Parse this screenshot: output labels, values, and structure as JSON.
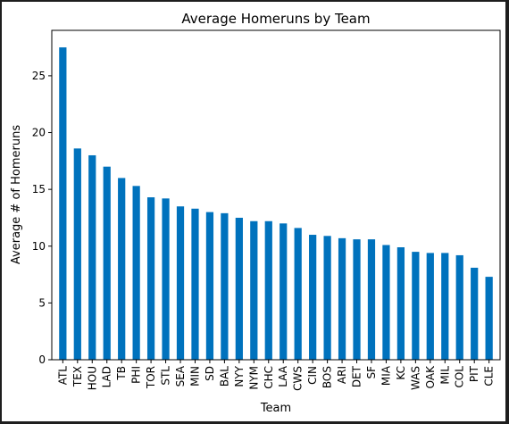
{
  "chart_data": {
    "type": "bar",
    "title": "Average Homeruns by Team",
    "xlabel": "Team",
    "ylabel": "Average # of Homeruns",
    "ylim": [
      0,
      29
    ],
    "yticks": [
      0,
      5,
      10,
      15,
      20,
      25
    ],
    "grid": false,
    "legend": "none",
    "bar_color": "#0072bd",
    "categories": [
      "ATL",
      "TEX",
      "HOU",
      "LAD",
      "TB",
      "PHI",
      "TOR",
      "STL",
      "SEA",
      "MIN",
      "SD",
      "BAL",
      "NYY",
      "NYM",
      "CHC",
      "LAA",
      "CWS",
      "CIN",
      "BOS",
      "ARI",
      "DET",
      "SF",
      "MIA",
      "KC",
      "WAS",
      "OAK",
      "MIL",
      "COL",
      "PIT",
      "CLE"
    ],
    "values": [
      27.5,
      18.6,
      18.0,
      17.0,
      16.0,
      15.3,
      14.3,
      14.2,
      13.5,
      13.3,
      13.0,
      12.9,
      12.5,
      12.2,
      12.2,
      12.0,
      11.6,
      11.0,
      10.9,
      10.7,
      10.6,
      10.6,
      10.1,
      9.9,
      9.5,
      9.4,
      9.4,
      9.2,
      8.1,
      7.3
    ]
  }
}
